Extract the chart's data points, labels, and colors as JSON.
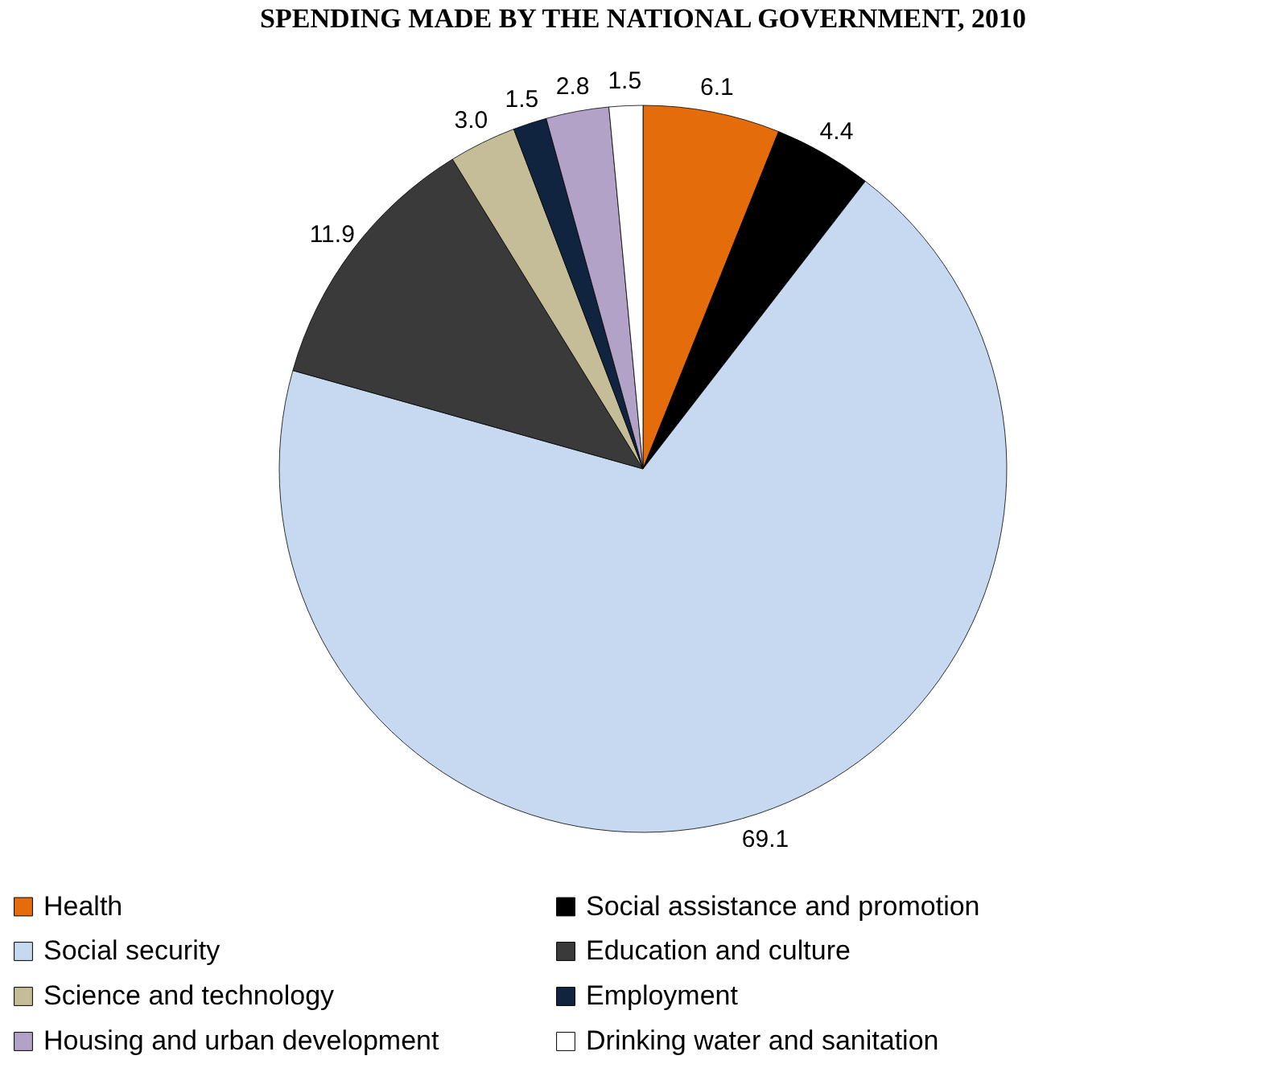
{
  "chart_data": {
    "type": "pie",
    "title": "SPENDING MADE BY THE NATIONAL GOVERNMENT, 2010",
    "categories": [
      "Health",
      "Social assistance and promotion",
      "Social security",
      "Education and culture",
      "Science and technology",
      "Employment",
      "Housing and urban development",
      "Drinking water and sanitation"
    ],
    "values": [
      6.1,
      4.4,
      69.1,
      11.9,
      3.0,
      1.5,
      2.8,
      1.5
    ],
    "colors": [
      "#e46c0a",
      "#000000",
      "#c6d9f1",
      "#3a3a3a",
      "#c4bd97",
      "#10243f",
      "#b3a2c7",
      "#ffffff"
    ],
    "value_labels": [
      "6.1",
      "4.4",
      "69.1",
      "11.9",
      "3.0",
      "1.5",
      "2.8",
      "1.5"
    ],
    "legend": "bottom"
  }
}
